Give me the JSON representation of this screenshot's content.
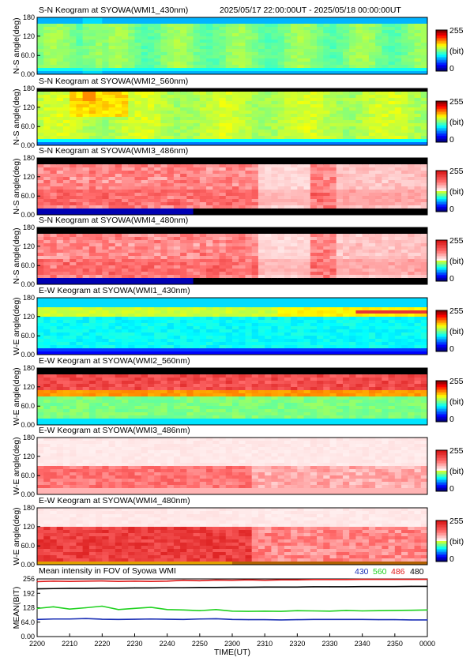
{
  "header": {
    "time_range": "2025/05/17 22:00:00UT - 2025/05/18 00:00:00UT"
  },
  "colorbar": {
    "max_label": "255",
    "unit_label": "(bit)",
    "min_label": "0"
  },
  "panels": [
    {
      "title": "S-N Keogram at SYOWA(WMI1_430nm)",
      "ylabel": "N-S angle(deg)",
      "style": "green",
      "ticks": [
        "180",
        "120",
        "60.0",
        "0.00"
      ]
    },
    {
      "title": "S-N Keogram at SYOWA(WMI2_560nm)",
      "ylabel": "N-S angle(deg)",
      "style": "green_bright",
      "ticks": [
        "180",
        "120",
        "60.0",
        "0.00"
      ]
    },
    {
      "title": "S-N Keogram at SYOWA(WMI3_486nm)",
      "ylabel": "N-S angle(deg)",
      "style": "red_sn",
      "ticks": [
        "180",
        "120",
        "60.0",
        "0.00"
      ]
    },
    {
      "title": "S-N Keogram at SYOWA(WMI4_480nm)",
      "ylabel": "N-S angle(deg)",
      "style": "red_sn",
      "ticks": [
        "180",
        "120",
        "60.0",
        "0.00"
      ]
    },
    {
      "title": "E-W Keogram at SYOWA(WMI1_430nm)",
      "ylabel": "W-E angle(deg)",
      "style": "green_ew",
      "ticks": [
        "180",
        "120",
        "60.0",
        "0.00"
      ]
    },
    {
      "title": "E-W Keogram at SYOWA(WMI2_560nm)",
      "ylabel": "W-E angle(deg)",
      "style": "green_ew_red",
      "ticks": [
        "180",
        "120",
        "60.0",
        "0.00"
      ]
    },
    {
      "title": "E-W Keogram at SYOWA(WMI3_486nm)",
      "ylabel": "W-E angle(deg)",
      "style": "red_ew",
      "ticks": [
        "180",
        "120",
        "60.0",
        "0.00"
      ]
    },
    {
      "title": "E-W Keogram at SYOWA(WMI4_480nm)",
      "ylabel": "W-E angle(deg)",
      "style": "red_ew_strong",
      "ticks": [
        "180",
        "120",
        "60.0",
        "0.00"
      ]
    }
  ],
  "colors": {
    "c430": "#1a2fb5",
    "c560": "#1fd11f",
    "c486": "#e01a1a",
    "c480": "#000000"
  },
  "chart_data": {
    "type": "line",
    "title": "Mean intensity in FOV of Syowa WMI",
    "xlabel": "TIME(UT)",
    "ylabel": "MEAN(BIT)",
    "x_ticks": [
      "2200",
      "2210",
      "2220",
      "2230",
      "2240",
      "2250",
      "2300",
      "2310",
      "2320",
      "2330",
      "2340",
      "2350",
      "0000"
    ],
    "y_ticks": [
      "256",
      "192",
      "128",
      "64.0",
      "0.00"
    ],
    "ylim": [
      0,
      256
    ],
    "x": [
      0,
      5,
      10,
      15,
      20,
      25,
      30,
      35,
      40,
      45,
      50,
      55,
      60,
      65,
      70,
      75,
      80,
      85,
      90,
      95,
      100,
      105,
      110,
      115,
      120
    ],
    "series": [
      {
        "name": "430",
        "values": [
          76,
          78,
          78,
          80,
          77,
          76,
          77,
          78,
          77,
          76,
          78,
          79,
          76,
          75,
          75,
          74,
          75,
          76,
          76,
          76,
          76,
          75,
          75,
          74,
          74
        ]
      },
      {
        "name": "560",
        "values": [
          125,
          132,
          122,
          128,
          135,
          120,
          125,
          130,
          120,
          118,
          115,
          120,
          113,
          112,
          113,
          112,
          115,
          114,
          113,
          116,
          114,
          115,
          116,
          117,
          118
        ]
      },
      {
        "name": "486",
        "values": [
          244,
          246,
          245,
          246,
          247,
          245,
          246,
          245,
          246,
          250,
          248,
          251,
          250,
          252,
          250,
          252,
          252,
          253,
          253,
          253,
          254,
          254,
          254,
          254,
          254
        ]
      },
      {
        "name": "480",
        "values": [
          212,
          213,
          214,
          214,
          215,
          215,
          216,
          216,
          217,
          217,
          218,
          218,
          219,
          219,
          220,
          220,
          220,
          221,
          221,
          221,
          222,
          222,
          222,
          223,
          223
        ]
      }
    ]
  }
}
